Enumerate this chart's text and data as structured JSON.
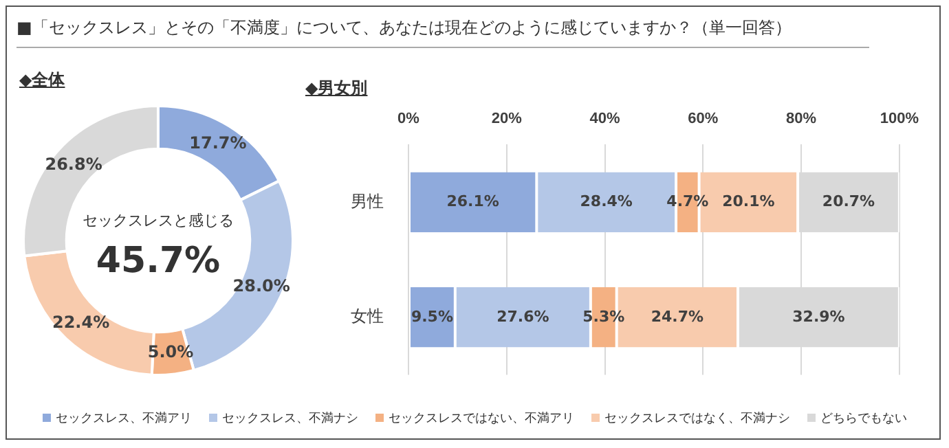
{
  "chart_data": [
    {
      "type": "donut",
      "title": "■「セックスレス」とその「不満度」について、あなたは現在どのように感じていますか？（単一回答）",
      "subtitle": "◆全体",
      "categories": [
        "セックスレス、不満アリ",
        "セックスレス、不満ナシ",
        "セックスレスではない、不満アリ",
        "セックスレスではなく、不満ナシ",
        "どちらでもない"
      ],
      "values": [
        17.7,
        28.0,
        5.0,
        22.4,
        26.8
      ],
      "value_labels": [
        "17.7%",
        "28.0%",
        "5.0%",
        "22.4%",
        "26.8%"
      ],
      "colors": [
        "#8faadc",
        "#b4c7e7",
        "#f4b183",
        "#f8cbad",
        "#d9d9d9"
      ],
      "annotations": [
        "セックスレスと感じる",
        "45.7%"
      ],
      "legend": "bottom"
    },
    {
      "type": "bar",
      "title": "◆男女別",
      "orientation": "horizontal",
      "stacked": true,
      "categories": [
        "男性",
        "女性"
      ],
      "series": [
        {
          "name": "セックスレス、不満アリ",
          "color": "#8faadc",
          "values": [
            26.1,
            9.5
          ],
          "value_labels": [
            "26.1%",
            "9.5%"
          ]
        },
        {
          "name": "セックスレス、不満ナシ",
          "color": "#b4c7e7",
          "values": [
            28.4,
            27.6
          ],
          "value_labels": [
            "28.4%",
            "27.6%"
          ]
        },
        {
          "name": "セックスレスではない、不満アリ",
          "color": "#f4b183",
          "values": [
            4.7,
            5.3
          ],
          "value_labels": [
            "4.7%",
            "5.3%"
          ]
        },
        {
          "name": "セックスレスではなく、不満ナシ",
          "color": "#f8cbad",
          "values": [
            20.1,
            24.7
          ],
          "value_labels": [
            "20.1%",
            "24.7%"
          ]
        },
        {
          "name": "どちらでもない",
          "color": "#d9d9d9",
          "values": [
            20.7,
            32.9
          ],
          "value_labels": [
            "20.7%",
            "32.9%"
          ]
        }
      ],
      "xlim": [
        0,
        100
      ],
      "xticks": [
        {
          "value": 0,
          "label": "0%"
        },
        {
          "value": 20,
          "label": "20%"
        },
        {
          "value": 40,
          "label": "40%"
        },
        {
          "value": 60,
          "label": "60%"
        },
        {
          "value": 80,
          "label": "80%"
        },
        {
          "value": 100,
          "label": "100%"
        }
      ],
      "grid": "x",
      "legend": "bottom"
    }
  ]
}
